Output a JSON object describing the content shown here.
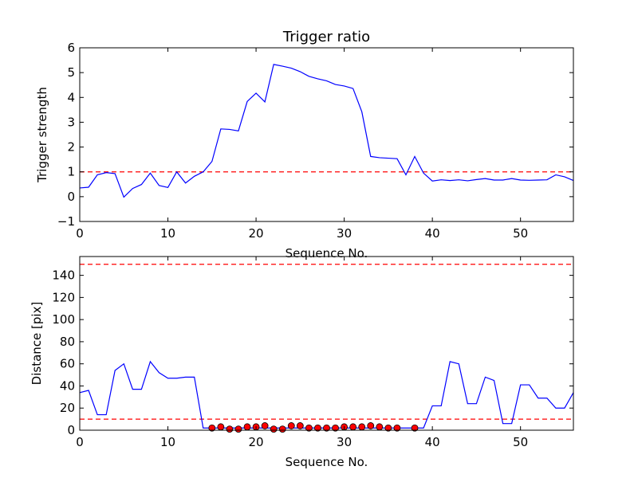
{
  "chart_data": [
    {
      "type": "line",
      "title": "Trigger ratio",
      "xlabel": "Sequence No.",
      "ylabel": "Trigger strength",
      "xlim": [
        0,
        56
      ],
      "ylim": [
        -1,
        6
      ],
      "xticks": [
        0,
        10,
        20,
        30,
        40,
        50
      ],
      "yticks": [
        -1,
        0,
        1,
        2,
        3,
        4,
        5,
        6
      ],
      "grid": false,
      "series": [
        {
          "color": "#0000ff",
          "x": [
            0,
            1,
            2,
            3,
            4,
            5,
            6,
            7,
            8,
            9,
            10,
            11,
            12,
            13,
            14,
            15,
            16,
            17,
            18,
            19,
            20,
            21,
            22,
            23,
            24,
            25,
            26,
            27,
            28,
            29,
            30,
            31,
            32,
            33,
            34,
            35,
            36,
            37,
            38,
            39,
            40,
            41,
            42,
            43,
            44,
            45,
            46,
            47,
            48,
            49,
            50,
            51,
            52,
            53,
            54,
            55,
            56
          ],
          "values": [
            0.35,
            0.38,
            0.88,
            0.97,
            0.93,
            -0.02,
            0.33,
            0.49,
            0.95,
            0.45,
            0.37,
            1.0,
            0.55,
            0.82,
            1.0,
            1.42,
            2.73,
            2.71,
            2.65,
            3.84,
            4.17,
            3.82,
            5.33,
            5.26,
            5.18,
            5.04,
            4.85,
            4.75,
            4.67,
            4.52,
            4.46,
            4.36,
            3.42,
            1.62,
            1.57,
            1.55,
            1.53,
            0.88,
            1.62,
            0.95,
            0.63,
            0.68,
            0.65,
            0.68,
            0.64,
            0.69,
            0.73,
            0.67,
            0.67,
            0.73,
            0.67,
            0.66,
            0.67,
            0.68,
            0.88,
            0.8,
            0.65
          ]
        }
      ],
      "hlines": [
        {
          "y": 1,
          "color": "#ff0000",
          "style": "dashed"
        }
      ]
    },
    {
      "type": "line",
      "title": "",
      "xlabel": "Sequence No.",
      "ylabel": "Distance [pix]",
      "xlim": [
        0,
        56
      ],
      "ylim": [
        0,
        157
      ],
      "xticks": [
        0,
        10,
        20,
        30,
        40,
        50
      ],
      "yticks": [
        0,
        20,
        40,
        60,
        80,
        100,
        120,
        140
      ],
      "grid": false,
      "series": [
        {
          "color": "#0000ff",
          "x": [
            0,
            1,
            2,
            3,
            4,
            5,
            6,
            7,
            8,
            9,
            10,
            11,
            12,
            13,
            14,
            15,
            16,
            17,
            18,
            19,
            20,
            21,
            22,
            23,
            24,
            25,
            26,
            27,
            28,
            29,
            30,
            31,
            32,
            33,
            34,
            35,
            36,
            37,
            38,
            39,
            40,
            41,
            42,
            43,
            44,
            45,
            46,
            47,
            48,
            49,
            50,
            51,
            52,
            53,
            54,
            55,
            56
          ],
          "values": [
            34,
            36,
            14,
            14,
            54,
            60,
            37,
            37,
            62,
            52,
            47,
            47,
            48,
            48,
            2,
            2,
            2,
            2,
            2,
            2,
            2,
            2,
            2,
            2,
            2,
            2,
            2,
            2,
            2,
            2,
            2,
            2,
            2,
            2,
            2,
            2,
            2,
            2,
            2,
            2,
            22,
            22,
            62,
            60,
            24,
            24,
            48,
            45,
            6,
            6,
            41,
            41,
            29,
            29,
            20,
            20,
            34
          ]
        },
        {
          "type": "scatter",
          "color": "#ff0000",
          "x": [
            15,
            16,
            17,
            18,
            19,
            20,
            21,
            22,
            23,
            24,
            25,
            26,
            27,
            28,
            29,
            30,
            31,
            32,
            33,
            34,
            35,
            36,
            38
          ],
          "values": [
            2,
            3,
            1,
            1,
            3,
            3,
            4,
            1,
            1,
            4,
            4,
            2,
            2,
            2,
            2,
            3,
            3,
            3,
            4,
            3,
            2,
            2,
            2
          ]
        }
      ],
      "hlines": [
        {
          "y": 150,
          "color": "#ff0000",
          "style": "dashed"
        },
        {
          "y": 10,
          "color": "#ff0000",
          "style": "dashed"
        }
      ]
    }
  ]
}
